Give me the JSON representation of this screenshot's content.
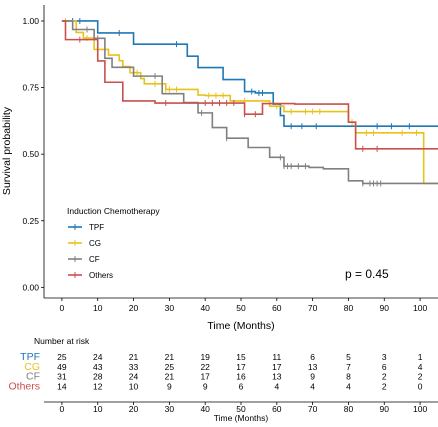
{
  "chart_data": {
    "type": "line",
    "subtype": "kaplan-meier",
    "xlabel": "Time (Months)",
    "ylabel": "Survival probability",
    "xlim": [
      -5,
      105
    ],
    "ylim": [
      -0.04,
      1.06
    ],
    "x_ticks": [
      0,
      10,
      20,
      30,
      40,
      50,
      60,
      70,
      80,
      90,
      100
    ],
    "y_ticks": [
      0.0,
      0.25,
      0.5,
      0.75,
      1.0
    ],
    "y_tick_labels": [
      "0.00",
      "0.25",
      "0.50",
      "0.75",
      "1.00"
    ],
    "grid": false,
    "legend": {
      "title": "Induction Chemotherapy",
      "position": "bottom-left",
      "entries": [
        "TPF",
        "CG",
        "CF",
        "Others"
      ]
    },
    "annotation": "p = 0.45",
    "series": [
      {
        "name": "TPF",
        "color": "#1f77b4",
        "steps": [
          [
            0,
            1.0
          ],
          [
            10,
            0.955
          ],
          [
            20,
            0.913
          ],
          [
            35,
            0.868
          ],
          [
            38,
            0.825
          ],
          [
            45,
            0.78
          ],
          [
            51,
            0.735
          ],
          [
            54,
            0.73
          ],
          [
            59,
            0.688
          ],
          [
            61,
            0.645
          ],
          [
            62,
            0.605
          ],
          [
            84,
            0.605
          ],
          [
            105,
            0.605
          ]
        ],
        "censor_x": [
          3,
          5,
          16,
          32,
          53,
          55,
          56,
          64,
          67,
          71,
          88,
          92,
          97
        ]
      },
      {
        "name": "CG",
        "color": "#e8c21c",
        "steps": [
          [
            0,
            1.0
          ],
          [
            4,
            0.957
          ],
          [
            6,
            0.936
          ],
          [
            9,
            0.893
          ],
          [
            13,
            0.872
          ],
          [
            16,
            0.851
          ],
          [
            17,
            0.829
          ],
          [
            19,
            0.806
          ],
          [
            22,
            0.784
          ],
          [
            23,
            0.764
          ],
          [
            29,
            0.743
          ],
          [
            35,
            0.743
          ],
          [
            38,
            0.722
          ],
          [
            40,
            0.72
          ],
          [
            46,
            0.72
          ],
          [
            47,
            0.7
          ],
          [
            54,
            0.7
          ],
          [
            58,
            0.68
          ],
          [
            62,
            0.66
          ],
          [
            80,
            0.62
          ],
          [
            82,
            0.58
          ],
          [
            88,
            0.58
          ],
          [
            101,
            0.39
          ],
          [
            105,
            0.39
          ]
        ],
        "censor_x": [
          1,
          7,
          10,
          12,
          21,
          26,
          29,
          30,
          32,
          41,
          43,
          45,
          51,
          60,
          64,
          68,
          70,
          72,
          81,
          85,
          87,
          95,
          99
        ]
      },
      {
        "name": "CF",
        "color": "#808080",
        "steps": [
          [
            0,
            1.0
          ],
          [
            3,
            0.968
          ],
          [
            9,
            0.935
          ],
          [
            12,
            0.86
          ],
          [
            14,
            0.826
          ],
          [
            20,
            0.793
          ],
          [
            28,
            0.727
          ],
          [
            34,
            0.694
          ],
          [
            38,
            0.655
          ],
          [
            42,
            0.6
          ],
          [
            46,
            0.56
          ],
          [
            52,
            0.525
          ],
          [
            58,
            0.488
          ],
          [
            62,
            0.455
          ],
          [
            69,
            0.45
          ],
          [
            73,
            0.445
          ],
          [
            80,
            0.4
          ],
          [
            84,
            0.39
          ],
          [
            105,
            0.39
          ]
        ],
        "censor_x": [
          7,
          10,
          26,
          39,
          46,
          61,
          62,
          63,
          64,
          66,
          68,
          84,
          86,
          87,
          88,
          89
        ]
      },
      {
        "name": "Others",
        "color": "#c9504b",
        "steps": [
          [
            0,
            1.0
          ],
          [
            1,
            0.93
          ],
          [
            10,
            0.85
          ],
          [
            12,
            0.77
          ],
          [
            17,
            0.7
          ],
          [
            26,
            0.692
          ],
          [
            51,
            0.65
          ],
          [
            56,
            0.69
          ],
          [
            65,
            0.688
          ],
          [
            80,
            0.62
          ],
          [
            82,
            0.52
          ],
          [
            105,
            0.52
          ]
        ],
        "censor_x": [
          5,
          29,
          40,
          42,
          44,
          46,
          48,
          51,
          54,
          84,
          88
        ]
      }
    ],
    "risk_table": {
      "title": "Number at risk",
      "xlabel": "Time (Months)",
      "times": [
        0,
        10,
        20,
        30,
        40,
        50,
        60,
        70,
        80,
        90,
        100
      ],
      "rows": [
        {
          "name": "TPF",
          "color": "#1f77b4",
          "values": [
            "25",
            "24",
            "21",
            "21",
            "19",
            "15",
            "11",
            "6",
            "5",
            "3",
            "1"
          ]
        },
        {
          "name": "CG",
          "color": "#e8c21c",
          "values": [
            "49",
            "43",
            "33",
            "25",
            "22",
            "17",
            "17",
            "13",
            "7",
            "6",
            "4"
          ]
        },
        {
          "name": "CF",
          "color": "#808080",
          "values": [
            "31",
            "28",
            "24",
            "21",
            "17",
            "16",
            "13",
            "9",
            "8",
            "2",
            "2"
          ]
        },
        {
          "name": "Others",
          "color": "#c9504b",
          "values": [
            "14",
            "12",
            "10",
            "9",
            "9",
            "6",
            "4",
            "4",
            "4",
            "2",
            "0"
          ]
        }
      ]
    }
  }
}
